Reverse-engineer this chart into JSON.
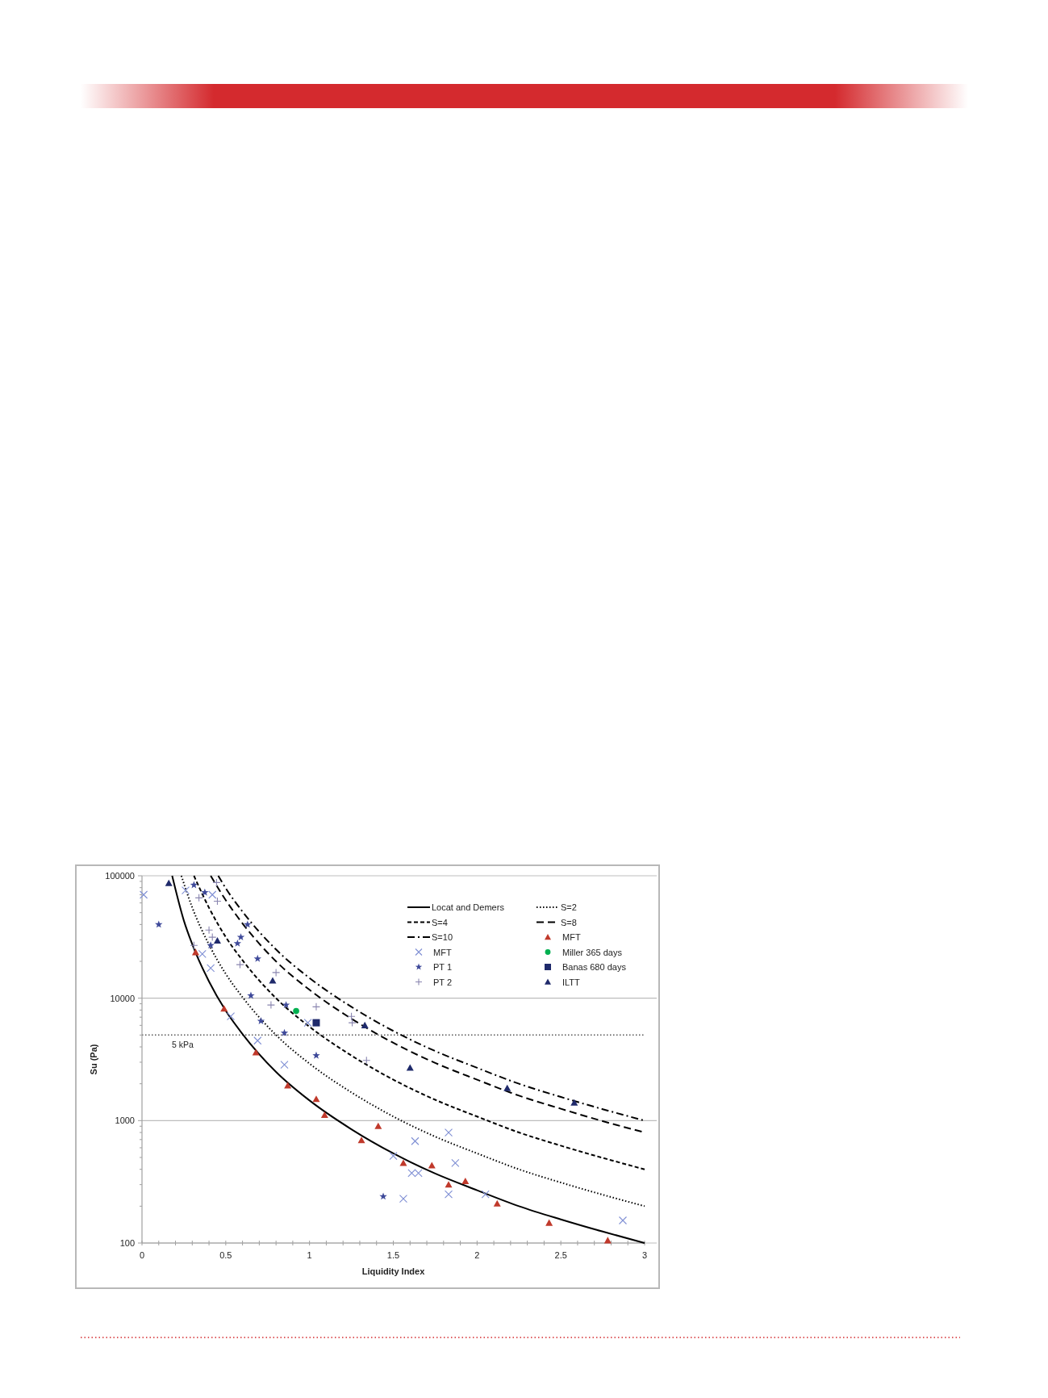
{
  "chart_data": {
    "type": "scatter",
    "xlabel": "Liquidity Index",
    "ylabel": "Su (Pa)",
    "log": "y",
    "grid": "y",
    "legend": "top right",
    "xlim": [
      0,
      3
    ],
    "ylim": [
      100,
      100000
    ],
    "xticks": [
      0,
      {
        "value": 0.1,
        "label": null
      },
      {
        "value": 0.2,
        "label": null
      },
      {
        "value": 0.3,
        "label": null
      },
      {
        "value": 0.4,
        "label": null
      },
      0.5,
      {
        "value": 0.6,
        "label": null
      },
      {
        "value": 0.7,
        "label": null
      },
      {
        "value": 0.8,
        "label": null
      },
      {
        "value": 0.9,
        "label": null
      },
      1,
      {
        "value": 1.1,
        "label": null
      },
      {
        "value": 1.2,
        "label": null
      },
      {
        "value": 1.3,
        "label": null
      },
      {
        "value": 1.4,
        "label": null
      },
      1.5,
      {
        "value": 1.6,
        "label": null
      },
      {
        "value": 1.7,
        "label": null
      },
      {
        "value": 1.8,
        "label": null
      },
      {
        "value": 1.9,
        "label": null
      },
      2,
      {
        "value": 2.1,
        "label": null
      },
      {
        "value": 2.2,
        "label": null
      },
      {
        "value": 2.3,
        "label": null
      },
      {
        "value": 2.4,
        "label": null
      },
      2.5,
      {
        "value": 2.6,
        "label": null
      },
      {
        "value": 2.7,
        "label": null
      },
      {
        "value": 2.8,
        "label": null
      },
      {
        "value": 2.9,
        "label": null
      },
      3
    ],
    "yticks": [
      100,
      {
        "value": 200,
        "label": null
      },
      {
        "value": 300,
        "label": null
      },
      {
        "value": 400,
        "label": null
      },
      {
        "value": 500,
        "label": null
      },
      {
        "value": 600,
        "label": null
      },
      {
        "value": 700,
        "label": null
      },
      {
        "value": 800,
        "label": null
      },
      {
        "value": 900,
        "label": null
      },
      1000,
      {
        "value": 2000,
        "label": null
      },
      {
        "value": 3000,
        "label": null
      },
      {
        "value": 4000,
        "label": null
      },
      {
        "value": 5000,
        "label": null
      },
      {
        "value": 6000,
        "label": null
      },
      {
        "value": 7000,
        "label": null
      },
      {
        "value": 8000,
        "label": null
      },
      {
        "value": 9000,
        "label": null
      },
      10000,
      {
        "value": 20000,
        "label": null
      },
      {
        "value": 30000,
        "label": null
      },
      {
        "value": 40000,
        "label": null
      },
      {
        "value": 50000,
        "label": null
      },
      {
        "value": 60000,
        "label": null
      },
      {
        "value": 70000,
        "label": null
      },
      {
        "value": 80000,
        "label": null
      },
      {
        "value": 90000,
        "label": null
      },
      100000
    ],
    "ref_lines": [
      {
        "axis": "y",
        "value": 5000,
        "label": "5 kPa",
        "line_style": "dotted",
        "color": "#555555"
      }
    ],
    "series": [
      {
        "name": "Locat and Demers",
        "type": "line",
        "line_style": "solid",
        "color": "#000000",
        "x": [
          0.18,
          0.25,
          0.3,
          0.4,
          0.5,
          0.6,
          0.8,
          1,
          1.25,
          1.5,
          1.75,
          2,
          2.25,
          2.5,
          2.75,
          3
        ],
        "values": [
          100000,
          43000,
          27600,
          13700,
          7900,
          5100,
          2500,
          1460,
          850,
          540,
          370,
          270,
          200,
          156,
          124,
          100
        ]
      },
      {
        "name": "S=2",
        "type": "line",
        "line_style": "dotted",
        "color": "#000000",
        "x": [
          0.235,
          0.3,
          0.4,
          0.5,
          0.6,
          0.8,
          1,
          1.25,
          1.5,
          1.75,
          2,
          2.25,
          2.5,
          2.75,
          3
        ],
        "values": [
          100000,
          55000,
          27400,
          15800,
          10200,
          5000,
          2920,
          1700,
          1080,
          740,
          540,
          400,
          312,
          248,
          200
        ]
      },
      {
        "name": "S=4",
        "type": "line",
        "line_style": "dashed",
        "color": "#000000",
        "x": [
          0.31,
          0.4,
          0.5,
          0.6,
          0.8,
          1,
          1.25,
          1.5,
          1.75,
          2,
          2.25,
          2.5,
          2.75,
          3
        ],
        "values": [
          100000,
          54800,
          31600,
          20400,
          10000,
          5840,
          3400,
          2160,
          1480,
          1080,
          800,
          624,
          496,
          400
        ]
      },
      {
        "name": "S=8",
        "type": "line",
        "line_style": "longdash",
        "color": "#000000",
        "x": [
          0.41,
          0.5,
          0.6,
          0.8,
          1,
          1.25,
          1.5,
          1.75,
          2,
          2.25,
          2.5,
          2.75,
          3
        ],
        "values": [
          100000,
          63200,
          40800,
          20000,
          11700,
          6800,
          4320,
          2960,
          2160,
          1600,
          1250,
          990,
          800
        ]
      },
      {
        "name": "S=10",
        "type": "line",
        "line_style": "dashdot",
        "color": "#000000",
        "x": [
          0.455,
          0.5,
          0.6,
          0.8,
          1,
          1.25,
          1.5,
          1.75,
          2,
          2.25,
          2.5,
          2.75,
          3
        ],
        "values": [
          100000,
          79000,
          51000,
          25000,
          14600,
          8500,
          5400,
          3700,
          2700,
          2000,
          1560,
          1240,
          1000
        ]
      },
      {
        "name": "MFT",
        "marker": "triangle",
        "color": "#c0392b",
        "x": [
          0.32,
          0.49,
          0.68,
          0.87,
          1.04,
          1.09,
          1.31,
          1.41,
          1.56,
          1.73,
          1.83,
          1.93,
          2.12,
          2.43,
          2.78
        ],
        "values": [
          23700,
          8200,
          3600,
          1930,
          1500,
          1110,
          690,
          900,
          450,
          430,
          300,
          320,
          210,
          146,
          105
        ]
      },
      {
        "name": "MFT",
        "marker": "x",
        "color": "#7f8fd4",
        "x": [
          0.01,
          0.26,
          0.36,
          0.41,
          0.42,
          0.53,
          0.69,
          0.85,
          0.99,
          1.5,
          1.61,
          1.65,
          1.56,
          1.63,
          1.83,
          1.87,
          1.83,
          2.05,
          2.87
        ],
        "values": [
          70000,
          76000,
          23000,
          17600,
          70000,
          7100,
          4500,
          2860,
          6300,
          515,
          373,
          373,
          230,
          680,
          800,
          450,
          250,
          250,
          153
        ]
      },
      {
        "name": "Miller 365 days",
        "marker": "circle",
        "color": "#00b050",
        "x": [
          0.92
        ],
        "values": [
          7850
        ]
      },
      {
        "name": "PT 1",
        "marker": "star",
        "color": "#3f4a9a",
        "x": [
          0.1,
          0.31,
          0.375,
          0.41,
          0.57,
          0.59,
          0.63,
          0.69,
          0.65,
          0.71,
          0.86,
          0.85,
          1.04,
          1.44
        ],
        "values": [
          40000,
          84000,
          73000,
          27000,
          28000,
          31500,
          40000,
          21000,
          10500,
          6500,
          8800,
          5200,
          3400,
          240
        ]
      },
      {
        "name": "Banas 680 days",
        "marker": "square",
        "color": "#1f2a6b",
        "x": [
          1.04
        ],
        "values": [
          6300
        ]
      },
      {
        "name": "PT 2",
        "marker": "cross",
        "color": "#8a86b0",
        "x": [
          0.34,
          0.45,
          0.445,
          0.4,
          0.42,
          0.31,
          0.585,
          0.8,
          0.77,
          1.04,
          1.25,
          1.255,
          1.34
        ],
        "values": [
          66000,
          62000,
          88000,
          36000,
          31500,
          27000,
          18800,
          16200,
          8800,
          8500,
          7100,
          6300,
          3100
        ]
      },
      {
        "name": "ILTT",
        "marker": "triangle",
        "color": "#1f2a6b",
        "x": [
          0.16,
          0.45,
          0.78,
          1.33,
          1.6,
          2.18,
          2.58
        ],
        "values": [
          87000,
          29500,
          13900,
          6000,
          2700,
          1840,
          1400
        ]
      }
    ]
  }
}
